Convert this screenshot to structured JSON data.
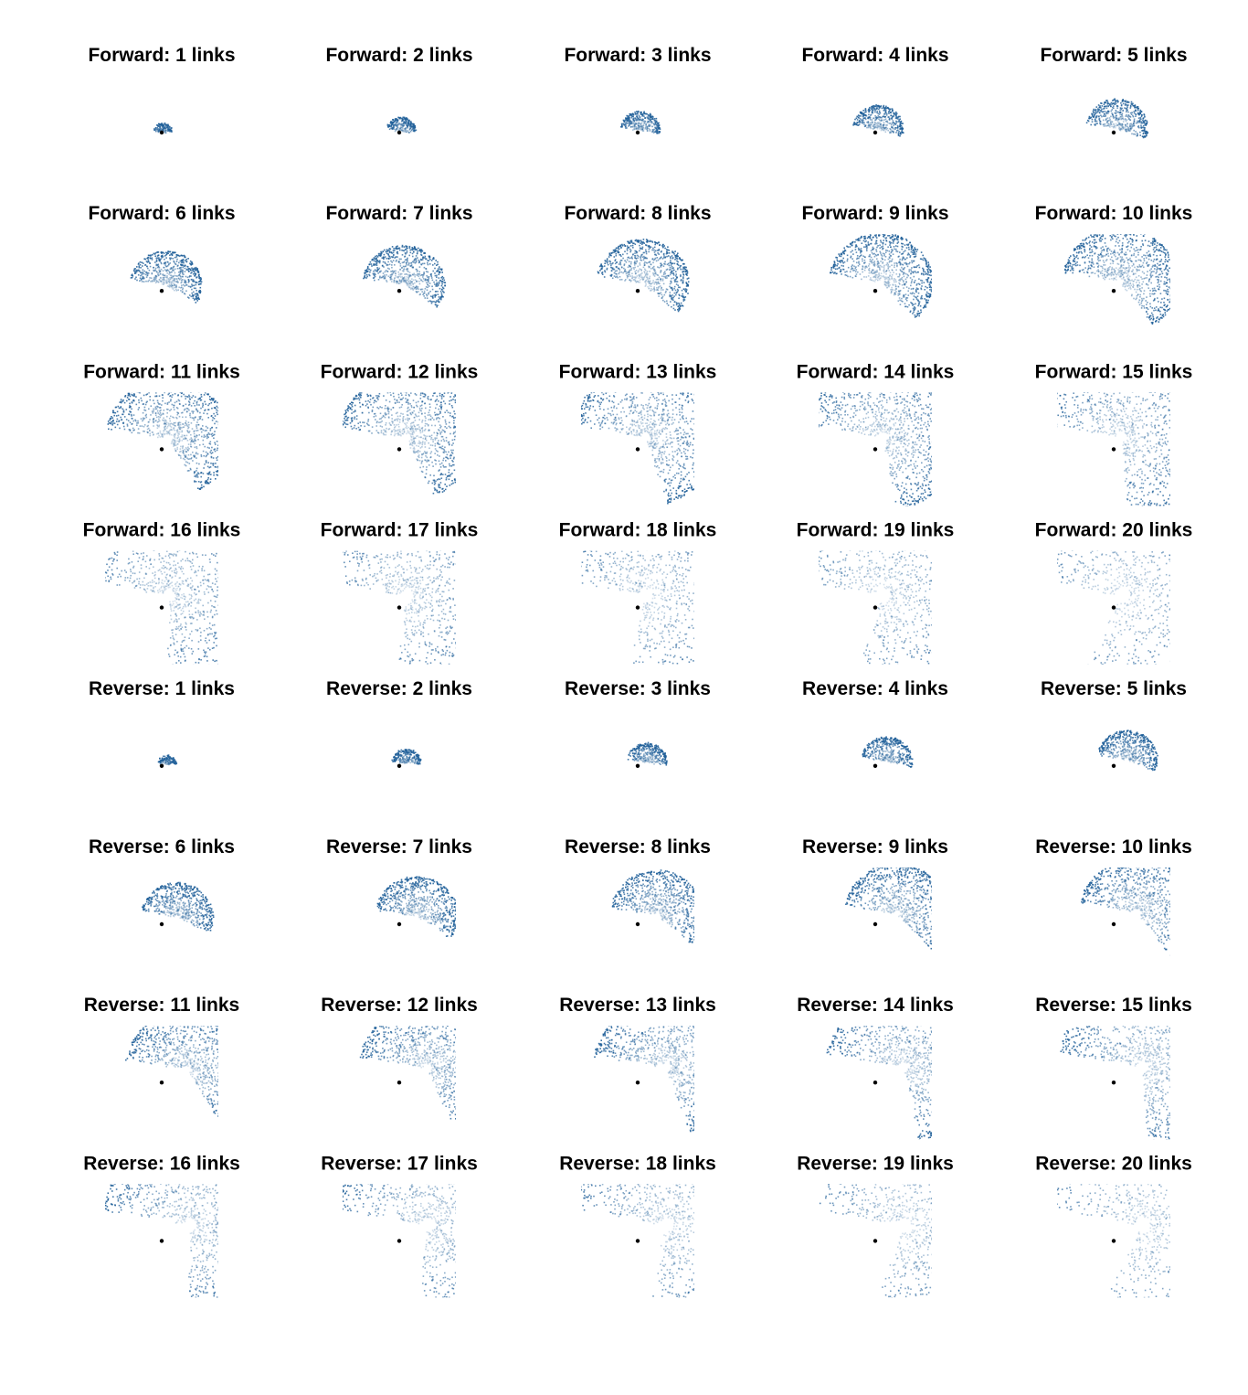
{
  "chart_data": {
    "type": "scatter",
    "title": "",
    "xlabel": "",
    "ylabel": "",
    "axes_visible": false,
    "grid": false,
    "legend": "none",
    "colors": {
      "points": "#1f5f99",
      "origin_marker": "#000000",
      "background": "#ffffff"
    },
    "layout": {
      "rows": 8,
      "cols": 5,
      "order": "row-major"
    },
    "panels": [
      {
        "title": "Forward: 1 links",
        "direction": "forward",
        "links": 1
      },
      {
        "title": "Forward: 2 links",
        "direction": "forward",
        "links": 2
      },
      {
        "title": "Forward: 3 links",
        "direction": "forward",
        "links": 3
      },
      {
        "title": "Forward: 4 links",
        "direction": "forward",
        "links": 4
      },
      {
        "title": "Forward: 5 links",
        "direction": "forward",
        "links": 5
      },
      {
        "title": "Forward: 6 links",
        "direction": "forward",
        "links": 6
      },
      {
        "title": "Forward: 7 links",
        "direction": "forward",
        "links": 7
      },
      {
        "title": "Forward: 8 links",
        "direction": "forward",
        "links": 8
      },
      {
        "title": "Forward: 9 links",
        "direction": "forward",
        "links": 9
      },
      {
        "title": "Forward: 10 links",
        "direction": "forward",
        "links": 10
      },
      {
        "title": "Forward: 11 links",
        "direction": "forward",
        "links": 11
      },
      {
        "title": "Forward: 12 links",
        "direction": "forward",
        "links": 12
      },
      {
        "title": "Forward: 13 links",
        "direction": "forward",
        "links": 13
      },
      {
        "title": "Forward: 14 links",
        "direction": "forward",
        "links": 14
      },
      {
        "title": "Forward: 15 links",
        "direction": "forward",
        "links": 15
      },
      {
        "title": "Forward: 16 links",
        "direction": "forward",
        "links": 16
      },
      {
        "title": "Forward: 17 links",
        "direction": "forward",
        "links": 17
      },
      {
        "title": "Forward: 18 links",
        "direction": "forward",
        "links": 18
      },
      {
        "title": "Forward: 19 links",
        "direction": "forward",
        "links": 19
      },
      {
        "title": "Forward: 20 links",
        "direction": "forward",
        "links": 20
      },
      {
        "title": "Reverse: 1 links",
        "direction": "reverse",
        "links": 1
      },
      {
        "title": "Reverse: 2 links",
        "direction": "reverse",
        "links": 2
      },
      {
        "title": "Reverse: 3 links",
        "direction": "reverse",
        "links": 3
      },
      {
        "title": "Reverse: 4 links",
        "direction": "reverse",
        "links": 4
      },
      {
        "title": "Reverse: 5 links",
        "direction": "reverse",
        "links": 5
      },
      {
        "title": "Reverse: 6 links",
        "direction": "reverse",
        "links": 6
      },
      {
        "title": "Reverse: 7 links",
        "direction": "reverse",
        "links": 7
      },
      {
        "title": "Reverse: 8 links",
        "direction": "reverse",
        "links": 8
      },
      {
        "title": "Reverse: 9 links",
        "direction": "reverse",
        "links": 9
      },
      {
        "title": "Reverse: 10 links",
        "direction": "reverse",
        "links": 10
      },
      {
        "title": "Reverse: 11 links",
        "direction": "reverse",
        "links": 11
      },
      {
        "title": "Reverse: 12 links",
        "direction": "reverse",
        "links": 12
      },
      {
        "title": "Reverse: 13 links",
        "direction": "reverse",
        "links": 13
      },
      {
        "title": "Reverse: 14 links",
        "direction": "reverse",
        "links": 14
      },
      {
        "title": "Reverse: 15 links",
        "direction": "reverse",
        "links": 15
      },
      {
        "title": "Reverse: 16 links",
        "direction": "reverse",
        "links": 16
      },
      {
        "title": "Reverse: 17 links",
        "direction": "reverse",
        "links": 17
      },
      {
        "title": "Reverse: 18 links",
        "direction": "reverse",
        "links": 18
      },
      {
        "title": "Reverse: 19 links",
        "direction": "reverse",
        "links": 19
      },
      {
        "title": "Reverse: 20 links",
        "direction": "reverse",
        "links": 20
      }
    ]
  }
}
